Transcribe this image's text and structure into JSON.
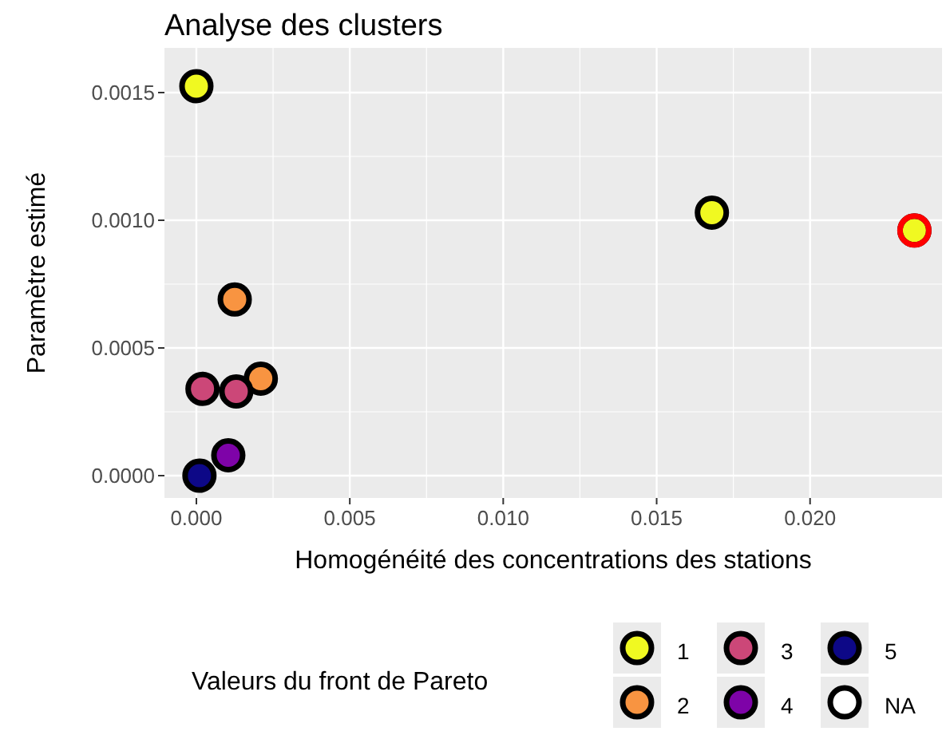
{
  "chart_data": {
    "type": "scatter",
    "title": "Analyse des clusters",
    "xlabel": "Homogénéité des concentrations des stations",
    "ylabel": "Paramètre estimé",
    "legend_title": "Valeurs du front de Pareto",
    "xlim": [
      -0.00104,
      0.0243
    ],
    "ylim": [
      -8.75e-05,
      0.001675
    ],
    "xticks": [
      {
        "value": 0,
        "label": "0.000"
      },
      {
        "value": 0.005,
        "label": "0.005"
      },
      {
        "value": 0.01,
        "label": "0.010"
      },
      {
        "value": 0.015,
        "label": "0.015"
      },
      {
        "value": 0.02,
        "label": "0.020"
      }
    ],
    "yticks": [
      {
        "value": 0,
        "label": "0.0000"
      },
      {
        "value": 0.0005,
        "label": "0.0005"
      },
      {
        "value": 0.001,
        "label": "0.0010"
      },
      {
        "value": 0.0015,
        "label": "0.0015"
      }
    ],
    "grid": true,
    "legend": "bottom",
    "marker": "circle",
    "series": [
      {
        "name": "1",
        "color": "#f0f921",
        "x": [
          0,
          0.0168,
          0.0234
        ],
        "values": [
          0.001525,
          0.00103,
          0.00096
        ]
      },
      {
        "name": "2",
        "color": "#f89441",
        "x": [
          0.00125,
          0.0021
        ],
        "values": [
          0.00069,
          0.00038
        ]
      },
      {
        "name": "3",
        "color": "#cc4778",
        "x": [
          0.0002,
          0.0013
        ],
        "values": [
          0.00034,
          0.00033
        ]
      },
      {
        "name": "4",
        "color": "#7e03a8",
        "x": [
          0.00104
        ],
        "values": [
          8e-05
        ]
      },
      {
        "name": "5",
        "color": "#0d0887",
        "x": [
          0.0001
        ],
        "values": [
          0
        ]
      },
      {
        "name": "NA",
        "color": "#ffffff"
      },
      {
        "color": "#ff0000",
        "x": [
          0.0234
        ],
        "values": [
          0.00096
        ]
      }
    ]
  }
}
